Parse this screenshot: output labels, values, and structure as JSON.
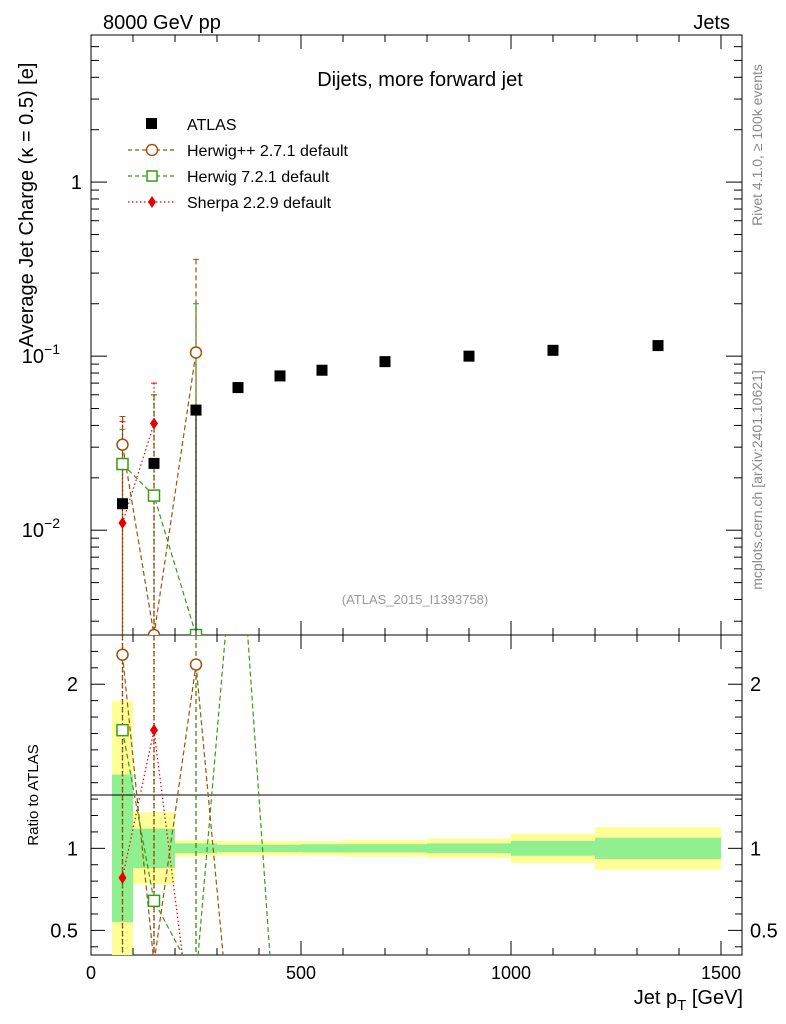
{
  "header": {
    "energy_label": "8000 GeV pp",
    "category_label": "Jets",
    "plot_title": "Dijets, more forward jet",
    "analysis_id": "(ATLAS_2015_I1393758)"
  },
  "side_text": {
    "rivet": "Rivet 4.1.0, ≥ 100k events",
    "source": "mcplots.cern.ch [arXiv:2401.10621]"
  },
  "legend": [
    {
      "label": "ATLAS",
      "color": "#000000",
      "marker": "filled-square"
    },
    {
      "label": "Herwig++ 2.7.1 default",
      "color": "#a0520a",
      "marker": "open-circle"
    },
    {
      "label": "Herwig 7.2.1 default",
      "color": "#3a9a18",
      "marker": "open-square"
    },
    {
      "label": "Sherpa 2.2.9 default",
      "color": "#e80000",
      "marker": "filled-diamond"
    }
  ],
  "chart_data": {
    "type": "scatter",
    "title": "Dijets, more forward jet",
    "xlabel": "Jet p_T [GeV]",
    "ylabel": "Average Jet Charge (κ = 0.5) [e]",
    "ratio_ylabel": "Ratio to ATLAS",
    "xlim": [
      0,
      1550
    ],
    "ylim": [
      0.0025,
      7
    ],
    "yscale": "log",
    "ratio_ylim": [
      0.35,
      2.3
    ],
    "x_ticks": [
      0,
      500,
      1000,
      1500
    ],
    "x_tick_labels": [
      "0",
      "500",
      "1000",
      "1500"
    ],
    "y_tick_labels": [
      "1",
      "10",
      "10"
    ],
    "y_tick_exponents": [
      "",
      "−1",
      "−2"
    ],
    "ratio_tick_labels": [
      "2",
      "1",
      "0.5"
    ],
    "ratio_ticks": [
      2,
      1,
      0.5
    ],
    "bins": [
      [
        50,
        100
      ],
      [
        100,
        200
      ],
      [
        200,
        300
      ],
      [
        300,
        400
      ],
      [
        400,
        500
      ],
      [
        500,
        600
      ],
      [
        600,
        800
      ],
      [
        800,
        1000
      ],
      [
        1000,
        1200
      ],
      [
        1200,
        1500
      ]
    ],
    "atlas": {
      "x": [
        75,
        150,
        250,
        350,
        450,
        550,
        700,
        900,
        1100,
        1350
      ],
      "y": [
        0.0142,
        0.0242,
        0.049,
        0.066,
        0.077,
        0.083,
        0.093,
        0.1,
        0.108,
        0.115
      ],
      "ratio_stat": [
        0.45,
        0.12,
        0.03,
        0.022,
        0.022,
        0.025,
        0.025,
        0.03,
        0.045,
        0.065
      ],
      "ratio_total": [
        0.9,
        0.22,
        0.05,
        0.045,
        0.045,
        0.045,
        0.05,
        0.06,
        0.09,
        0.13
      ]
    },
    "series": [
      {
        "name": "Herwig++ 2.7.1 default",
        "color": "#a0520a",
        "x": [
          75,
          150,
          250
        ],
        "y": [
          0.031,
          0.0025,
          0.105
        ],
        "err_up": [
          0.045,
          0.06,
          0.36
        ],
        "ratio": [
          2.18,
          0.3,
          2.12
        ]
      },
      {
        "name": "Herwig 7.2.1 default",
        "color": "#3a9a18",
        "x": [
          75,
          150,
          250
        ],
        "y": [
          0.024,
          0.0158,
          0.0025
        ],
        "err_up": [
          0.038,
          0.06,
          0.2
        ],
        "ratio": [
          1.72,
          0.68,
          0.2
        ]
      },
      {
        "name": "Sherpa 2.2.9 default",
        "color": "#e80000",
        "x": [
          75,
          150
        ],
        "y": [
          0.011,
          0.041
        ],
        "err_up": [
          0.042,
          0.07
        ],
        "ratio": [
          0.82,
          1.72
        ]
      }
    ],
    "colors": {
      "band_stat": "#90f090",
      "band_total": "#ffff98"
    }
  }
}
